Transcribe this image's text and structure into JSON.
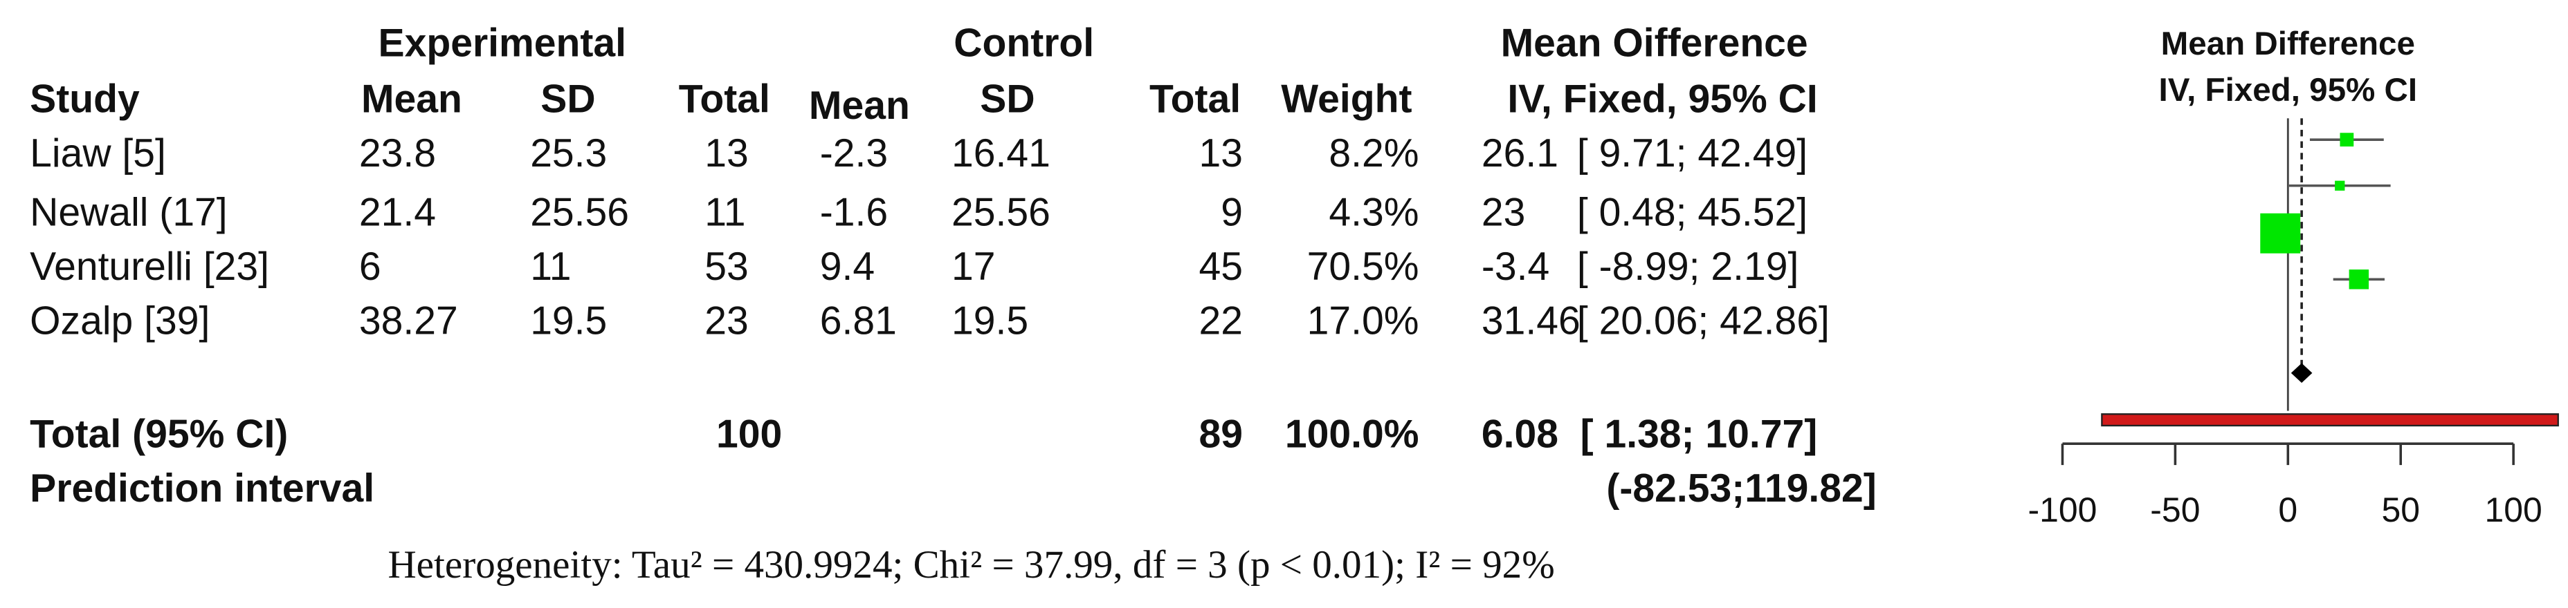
{
  "table": {
    "group_headers": {
      "experimental": "Experimental",
      "control": "Control",
      "md": "Mean Oifference"
    },
    "columns": [
      "Study",
      "Mean",
      "SD",
      "Total",
      "Mean",
      "SD",
      "Total",
      "Weight",
      "IV, Fixed, 95% CI"
    ],
    "rows": [
      [
        "Liaw [5]",
        "23.8",
        "25.3",
        "13",
        "-2.3",
        "16.41",
        "13",
        "8.2%",
        "26.1",
        "[ 9.71; 42.49]"
      ],
      [
        "Newall (17]",
        "21.4",
        "25.56",
        "11",
        "-1.6",
        "25.56",
        "9",
        "4.3%",
        "23",
        "[ 0.48; 45.52]"
      ],
      [
        "Venturelli [23]",
        "6",
        "11",
        "53",
        "9.4",
        "17",
        "45",
        "70.5%",
        "-3.4",
        "[ -8.99; 2.19]"
      ],
      [
        "Ozalp [39]",
        "38.27",
        "19.5",
        "23",
        "6.81",
        "19.5",
        "22",
        "17.0%",
        "31.46",
        "[ 20.06; 42.86]"
      ]
    ],
    "total": {
      "label": "Total (95% CI)",
      "exp_total": "100",
      "ctrl_total": "89",
      "weight": "100.0%",
      "md": "6.08",
      "ci": "[ 1.38; 10.77]"
    },
    "prediction": {
      "label": "Prediction interval",
      "ci": "(-82.53;119.82]"
    }
  },
  "heterogeneity": "Heterogeneity: Tau² = 430.9924; Chi² = 37.99, df = 3 (p < 0.01); I² = 92%",
  "chart_data": {
    "type": "forest",
    "title": [
      "Mean Difference",
      "IV, Fixed, 95% CI"
    ],
    "mean": [
      26.1,
      23,
      -3.4,
      31.46
    ],
    "lower": [
      9.71,
      0.48,
      -8.99,
      20.06
    ],
    "upper": [
      42.49,
      45.52,
      2.19,
      42.86
    ],
    "weight": [
      8.2,
      4.3,
      70.5,
      17.0
    ],
    "summary": {
      "mean": 6.08,
      "lower": 1.38,
      "upper": 10.77
    },
    "prediction": {
      "lower": -82.53,
      "upper": 119.82
    },
    "xlim": [
      -100,
      100
    ],
    "xticks": [
      -100,
      -50,
      0,
      50,
      100
    ],
    "color": "#00e600",
    "prediction_color": "#d11a1a"
  }
}
